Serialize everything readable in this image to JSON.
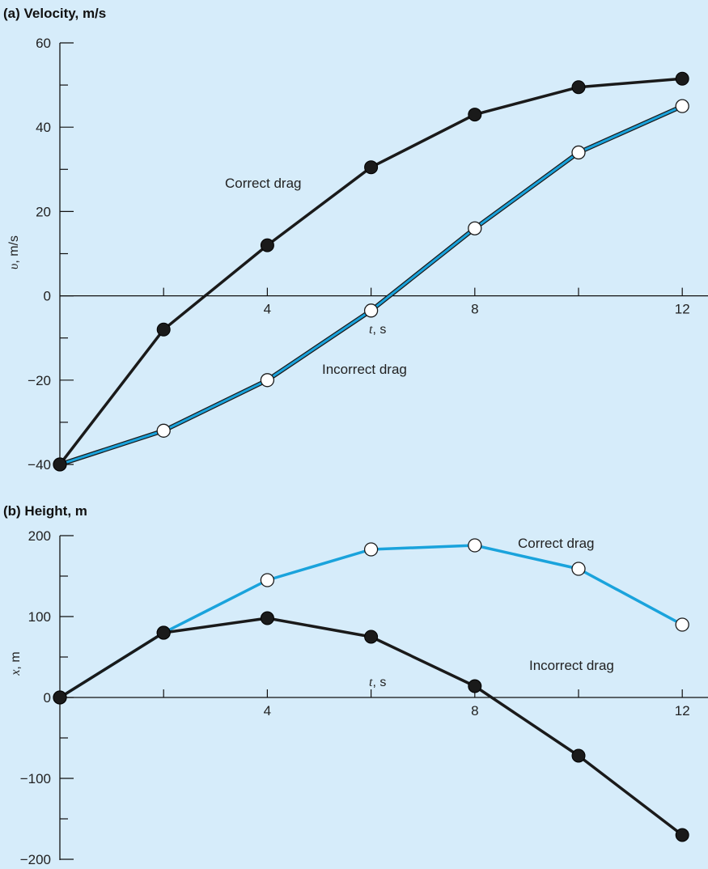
{
  "colors": {
    "background": "#d6ecfa",
    "axis": "#111111",
    "correct": "#1a1a1a",
    "incorrect": "#1aa3dc"
  },
  "chart_data": [
    {
      "type": "line",
      "title": "(a) Velocity, m/s",
      "x_var": "t",
      "x_unit": ", s",
      "y_var": "υ",
      "y_unit": ", m/s",
      "x": [
        0,
        2,
        4,
        6,
        8,
        10,
        12
      ],
      "xlim": [
        0,
        12.5
      ],
      "ylim": [
        -40,
        60
      ],
      "x_ticks": [
        2,
        4,
        6,
        8,
        10,
        12
      ],
      "x_tick_labels": [
        {
          "value": 4,
          "label": "4"
        },
        {
          "value": 8,
          "label": "8"
        },
        {
          "value": 12,
          "label": "12"
        }
      ],
      "y_ticks": [
        -40,
        -30,
        -20,
        -10,
        0,
        10,
        20,
        30,
        40,
        50,
        60
      ],
      "y_tick_labels": [
        {
          "value": 60,
          "label": "60"
        },
        {
          "value": 40,
          "label": "40"
        },
        {
          "value": 20,
          "label": "20"
        },
        {
          "value": 0,
          "label": "0"
        },
        {
          "value": -20,
          "label": "−20"
        },
        {
          "value": -40,
          "label": "−40"
        }
      ],
      "series": [
        {
          "name": "Correct drag",
          "style": "filled",
          "values": [
            -40,
            -8,
            12,
            30.5,
            43,
            49.5,
            51.5
          ]
        },
        {
          "name": "Incorrect drag",
          "style": "open",
          "values": [
            -40,
            -32,
            -20,
            -3.5,
            16,
            34,
            45
          ]
        }
      ]
    },
    {
      "type": "line",
      "title": "(b) Height, m",
      "x_var": "t",
      "x_unit": ", s",
      "y_var": "x",
      "y_unit": ", m",
      "x": [
        0,
        2,
        4,
        6,
        8,
        10,
        12
      ],
      "xlim": [
        0,
        12.5
      ],
      "ylim": [
        -200,
        200
      ],
      "x_ticks": [
        2,
        4,
        6,
        8,
        10,
        12
      ],
      "x_tick_labels": [
        {
          "value": 4,
          "label": "4"
        },
        {
          "value": 8,
          "label": "8"
        },
        {
          "value": 12,
          "label": "12"
        }
      ],
      "y_ticks": [
        -200,
        -150,
        -100,
        -50,
        0,
        50,
        100,
        150,
        200
      ],
      "y_tick_labels": [
        {
          "value": 200,
          "label": "200"
        },
        {
          "value": 100,
          "label": "100"
        },
        {
          "value": 0,
          "label": "0"
        },
        {
          "value": -100,
          "label": "−100"
        },
        {
          "value": -200,
          "label": "−200"
        }
      ],
      "series": [
        {
          "name": "Correct drag",
          "style": "filled",
          "values": [
            0,
            80,
            98,
            75,
            14,
            -72,
            -170
          ]
        },
        {
          "name": "Incorrect drag",
          "style": "open",
          "values": [
            0,
            80,
            145,
            183,
            188,
            159,
            90
          ]
        }
      ]
    }
  ]
}
